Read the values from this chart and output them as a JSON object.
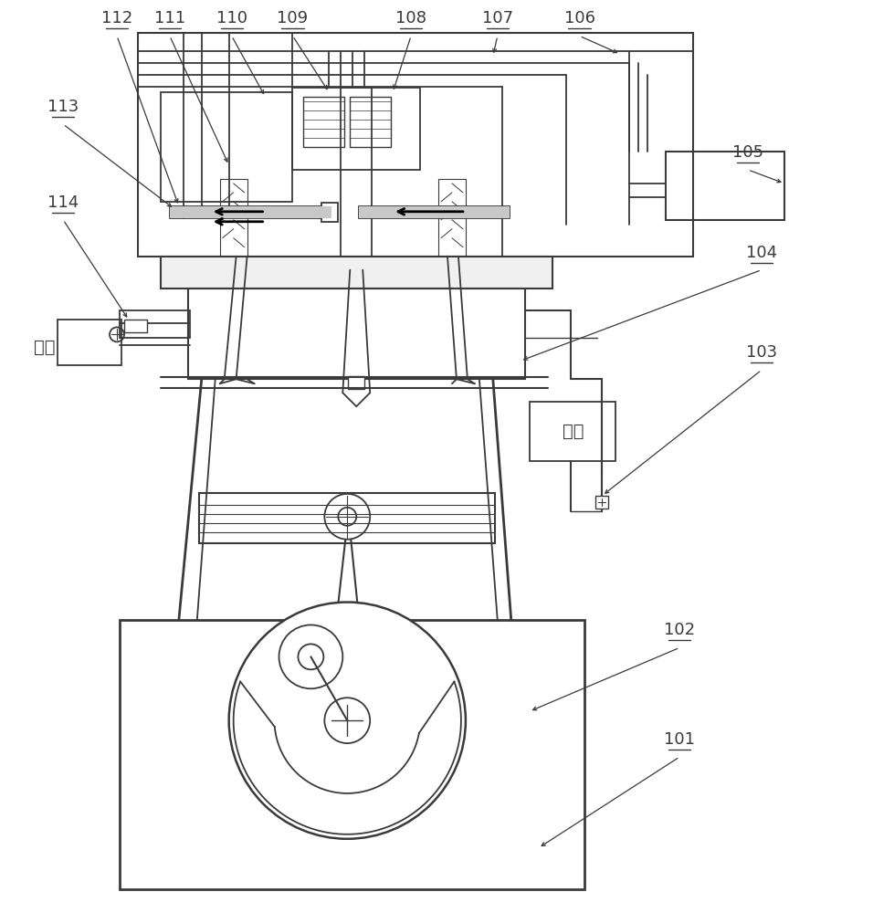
{
  "bg_color": "#ffffff",
  "line_color": "#3a3a3a",
  "lw": 1.3,
  "gray_fill": "#c8c8c8",
  "light_gray": "#e8e8e8"
}
